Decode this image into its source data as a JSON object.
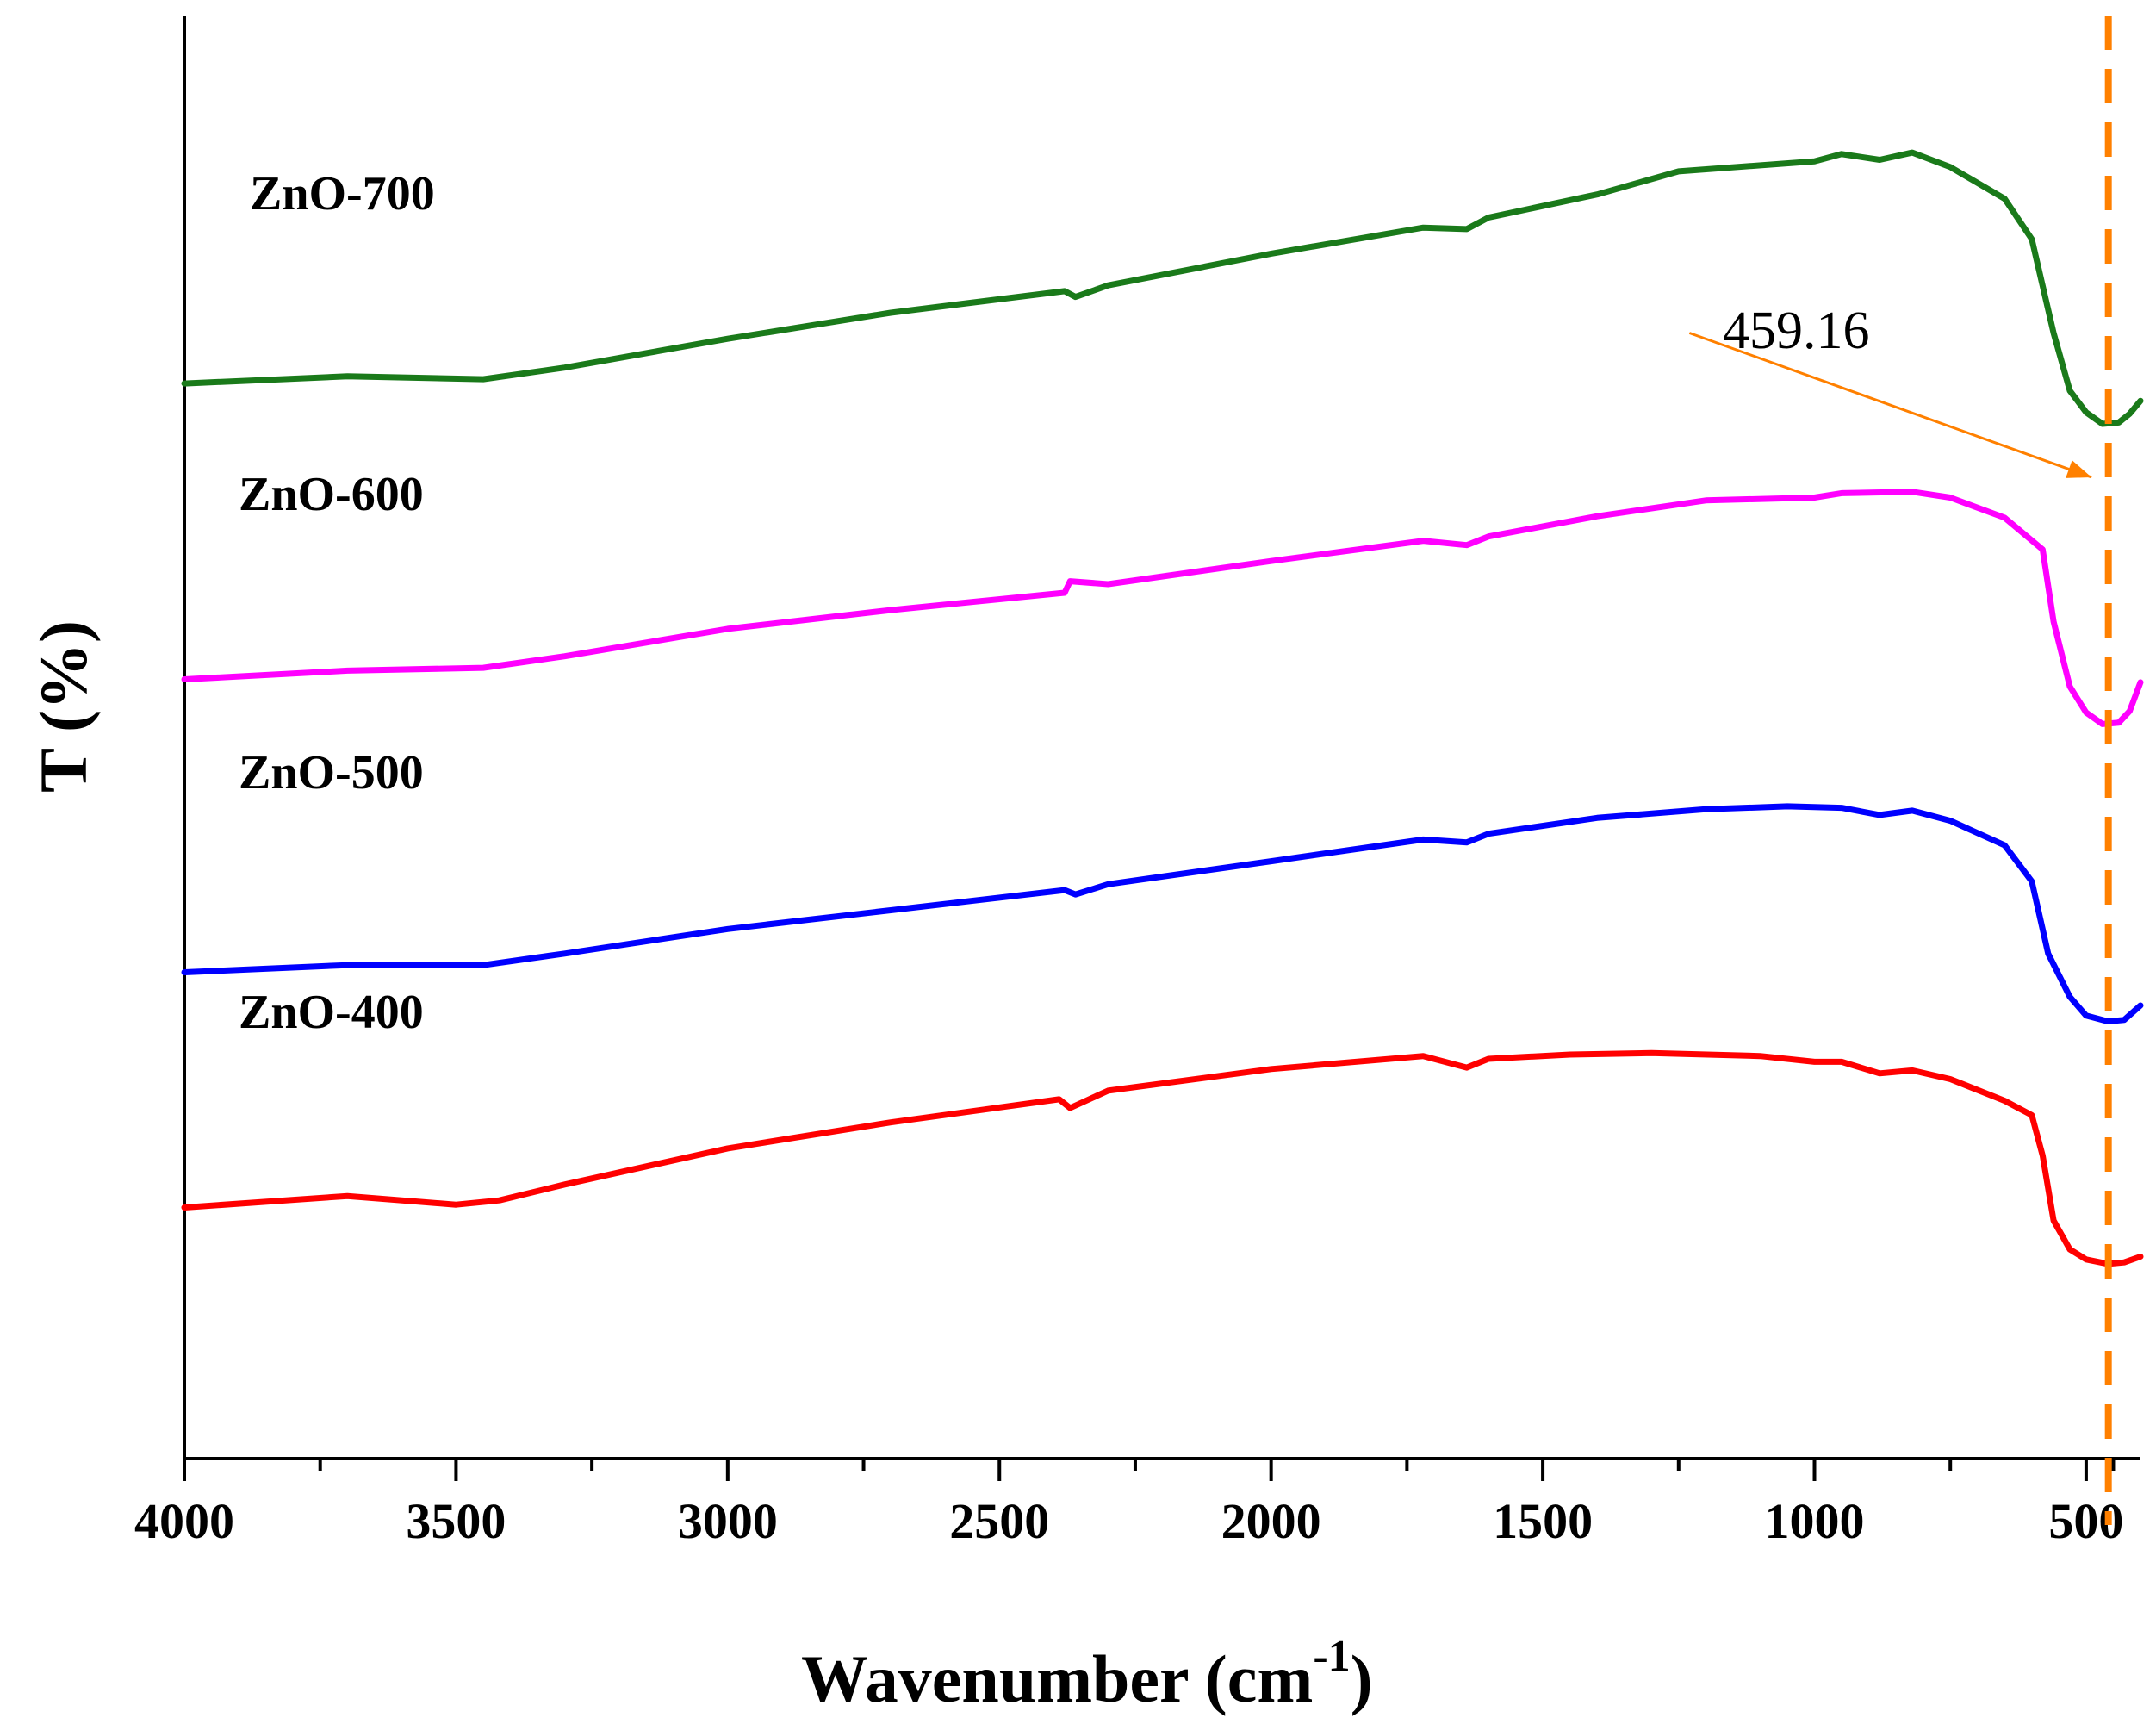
{
  "chart_data": {
    "type": "line",
    "title": "",
    "xlabel": "Wavenumber (cm",
    "xlabel_sup": "-1",
    "xlabel_close": ")",
    "ylabel": "T (%)",
    "xlim": [
      4000,
      400
    ],
    "x_reversed": true,
    "ylim": [
      0,
      100
    ],
    "y_ticks_shown": false,
    "x_ticks": [
      4000,
      3500,
      3000,
      2500,
      2000,
      1500,
      1000,
      500
    ],
    "x_tick_labels": [
      "4000",
      "3500",
      "3000",
      "2500",
      "2000",
      "1500",
      "1000",
      "500"
    ],
    "grid": false,
    "series": [
      {
        "name": "ZnO-700",
        "color": "#1a7a1a",
        "points": [
          [
            4000,
            74.5
          ],
          [
            3700,
            75.0
          ],
          [
            3450,
            74.8
          ],
          [
            3300,
            75.6
          ],
          [
            3000,
            77.6
          ],
          [
            2700,
            79.4
          ],
          [
            2380,
            80.9
          ],
          [
            2360,
            80.5
          ],
          [
            2300,
            81.3
          ],
          [
            2000,
            83.5
          ],
          [
            1720,
            85.3
          ],
          [
            1640,
            85.2
          ],
          [
            1600,
            86.0
          ],
          [
            1400,
            87.6
          ],
          [
            1250,
            89.2
          ],
          [
            1000,
            89.9
          ],
          [
            950,
            90.4
          ],
          [
            880,
            90.0
          ],
          [
            820,
            90.5
          ],
          [
            750,
            89.5
          ],
          [
            650,
            87.3
          ],
          [
            600,
            84.5
          ],
          [
            560,
            78.0
          ],
          [
            530,
            74.0
          ],
          [
            500,
            72.5
          ],
          [
            470,
            71.7
          ],
          [
            440,
            71.8
          ],
          [
            420,
            72.4
          ],
          [
            400,
            73.3
          ]
        ]
      },
      {
        "name": "ZnO-600",
        "color": "#ff00ff",
        "points": [
          [
            4000,
            54.0
          ],
          [
            3700,
            54.6
          ],
          [
            3450,
            54.8
          ],
          [
            3300,
            55.6
          ],
          [
            3000,
            57.5
          ],
          [
            2700,
            58.8
          ],
          [
            2380,
            60.0
          ],
          [
            2370,
            60.8
          ],
          [
            2300,
            60.6
          ],
          [
            2000,
            62.2
          ],
          [
            1720,
            63.6
          ],
          [
            1640,
            63.3
          ],
          [
            1600,
            63.9
          ],
          [
            1400,
            65.3
          ],
          [
            1200,
            66.4
          ],
          [
            1000,
            66.6
          ],
          [
            950,
            66.9
          ],
          [
            820,
            67.0
          ],
          [
            750,
            66.6
          ],
          [
            650,
            65.2
          ],
          [
            580,
            63.0
          ],
          [
            560,
            58.0
          ],
          [
            530,
            53.5
          ],
          [
            500,
            51.7
          ],
          [
            470,
            50.9
          ],
          [
            440,
            51.0
          ],
          [
            420,
            51.8
          ],
          [
            400,
            53.8
          ]
        ]
      },
      {
        "name": "ZnO-500",
        "color": "#0000ff",
        "points": [
          [
            4000,
            33.7
          ],
          [
            3700,
            34.2
          ],
          [
            3450,
            34.2
          ],
          [
            3300,
            35.0
          ],
          [
            3000,
            36.7
          ],
          [
            2700,
            38.0
          ],
          [
            2380,
            39.4
          ],
          [
            2360,
            39.1
          ],
          [
            2300,
            39.8
          ],
          [
            2000,
            41.4
          ],
          [
            1720,
            42.9
          ],
          [
            1640,
            42.7
          ],
          [
            1600,
            43.3
          ],
          [
            1400,
            44.4
          ],
          [
            1200,
            45.0
          ],
          [
            1050,
            45.2
          ],
          [
            950,
            45.1
          ],
          [
            880,
            44.6
          ],
          [
            820,
            44.9
          ],
          [
            750,
            44.2
          ],
          [
            650,
            42.5
          ],
          [
            600,
            40.0
          ],
          [
            570,
            35.0
          ],
          [
            530,
            32.0
          ],
          [
            500,
            30.7
          ],
          [
            460,
            30.3
          ],
          [
            430,
            30.4
          ],
          [
            400,
            31.4
          ]
        ]
      },
      {
        "name": "ZnO-400",
        "color": "#ff0000",
        "points": [
          [
            4000,
            17.4
          ],
          [
            3700,
            18.2
          ],
          [
            3500,
            17.6
          ],
          [
            3420,
            17.9
          ],
          [
            3300,
            19.0
          ],
          [
            3000,
            21.5
          ],
          [
            2700,
            23.3
          ],
          [
            2390,
            24.9
          ],
          [
            2370,
            24.3
          ],
          [
            2300,
            25.5
          ],
          [
            2000,
            27.0
          ],
          [
            1720,
            27.9
          ],
          [
            1640,
            27.1
          ],
          [
            1600,
            27.7
          ],
          [
            1450,
            28.0
          ],
          [
            1300,
            28.1
          ],
          [
            1100,
            27.9
          ],
          [
            1000,
            27.5
          ],
          [
            950,
            27.5
          ],
          [
            880,
            26.7
          ],
          [
            820,
            26.9
          ],
          [
            750,
            26.3
          ],
          [
            650,
            24.8
          ],
          [
            600,
            23.8
          ],
          [
            580,
            21.0
          ],
          [
            560,
            16.5
          ],
          [
            530,
            14.5
          ],
          [
            500,
            13.8
          ],
          [
            460,
            13.5
          ],
          [
            430,
            13.6
          ],
          [
            400,
            14.0
          ]
        ]
      }
    ],
    "annotations": [
      {
        "type": "vline",
        "x": 459.16,
        "color": "#ff8000",
        "style": "dashed"
      },
      {
        "type": "arrow",
        "text": "459.16",
        "from_x": 1230,
        "from_y": 78.0,
        "to_x": 490,
        "to_y": 68.0,
        "color": "#ff8000"
      }
    ]
  }
}
